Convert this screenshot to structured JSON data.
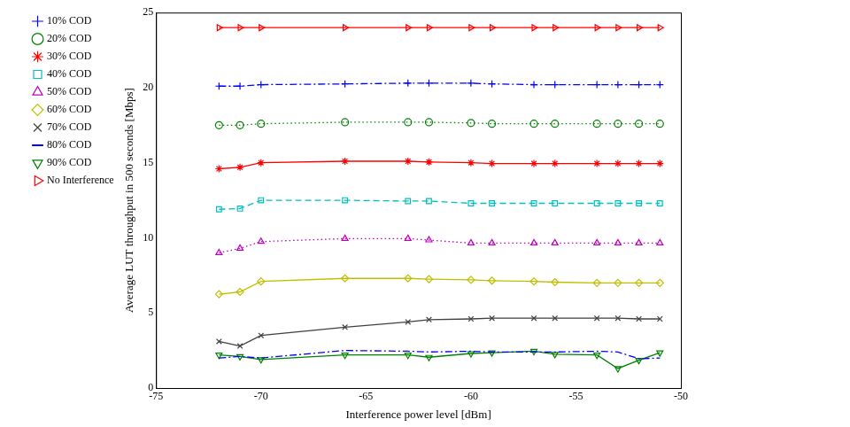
{
  "chart_data": {
    "type": "line",
    "x_label": "Interference power level [dBm]",
    "y_label": "Average LUT throughput in 500 seconds [Mbps]",
    "x": [
      -72,
      -71,
      -70,
      -66,
      -63,
      -62,
      -60,
      -59,
      -57,
      -56,
      -54,
      -53,
      -52,
      -51
    ],
    "xlim": [
      -75,
      -50
    ],
    "xticks": [
      -75,
      -70,
      -65,
      -60,
      -55,
      -50
    ],
    "ylim": [
      0,
      25
    ],
    "yticks": [
      0,
      5,
      10,
      15,
      20,
      25
    ],
    "grid": false,
    "legend": "left",
    "series": [
      {
        "name": "10% COD",
        "color": "#0000ff",
        "marker": "plus",
        "line_style": "dashdot",
        "values": [
          20.1,
          20.1,
          20.2,
          20.25,
          20.3,
          20.3,
          20.3,
          20.25,
          20.2,
          20.2,
          20.2,
          20.2,
          20.2,
          20.2
        ]
      },
      {
        "name": "20% COD",
        "color": "#008000",
        "marker": "circle",
        "line_style": "dotted",
        "values": [
          17.5,
          17.5,
          17.6,
          17.7,
          17.7,
          17.7,
          17.65,
          17.6,
          17.6,
          17.6,
          17.6,
          17.6,
          17.6,
          17.6
        ]
      },
      {
        "name": "30% COD",
        "color": "#ff0000",
        "marker": "star",
        "line_style": "solid",
        "values": [
          14.6,
          14.7,
          15.0,
          15.1,
          15.1,
          15.05,
          15.0,
          14.95,
          14.95,
          14.95,
          14.95,
          14.95,
          14.95,
          14.95
        ]
      },
      {
        "name": "40% COD",
        "color": "#00bfbf",
        "marker": "square",
        "line_style": "dashed",
        "values": [
          11.9,
          11.95,
          12.5,
          12.5,
          12.45,
          12.45,
          12.3,
          12.3,
          12.3,
          12.3,
          12.3,
          12.3,
          12.3,
          12.3
        ]
      },
      {
        "name": "50% COD",
        "color": "#bf00bf",
        "marker": "triangle_up",
        "line_style": "dotted",
        "values": [
          9.0,
          9.3,
          9.75,
          9.95,
          9.95,
          9.85,
          9.65,
          9.65,
          9.65,
          9.65,
          9.65,
          9.65,
          9.65,
          9.65
        ]
      },
      {
        "name": "60% COD",
        "color": "#bfbf00",
        "marker": "diamond",
        "line_style": "solid",
        "values": [
          6.25,
          6.4,
          7.1,
          7.3,
          7.3,
          7.25,
          7.2,
          7.15,
          7.1,
          7.05,
          7.0,
          7.0,
          7.0,
          7.0
        ]
      },
      {
        "name": "70% COD",
        "color": "#404040",
        "marker": "x",
        "line_style": "solid",
        "values": [
          3.1,
          2.8,
          3.5,
          4.05,
          4.4,
          4.55,
          4.6,
          4.65,
          4.65,
          4.65,
          4.65,
          4.65,
          4.6,
          4.6
        ]
      },
      {
        "name": "80% COD",
        "color": "#0000ff",
        "marker": "none",
        "line_style": "dashdot",
        "values": [
          2.0,
          2.1,
          2.0,
          2.5,
          2.45,
          2.4,
          2.45,
          2.4,
          2.4,
          2.4,
          2.45,
          2.4,
          1.95,
          2.0
        ]
      },
      {
        "name": "90% COD",
        "color": "#008000",
        "marker": "triangle_down",
        "line_style": "solid",
        "values": [
          2.2,
          2.1,
          1.9,
          2.2,
          2.2,
          2.05,
          2.3,
          2.35,
          2.45,
          2.25,
          2.2,
          1.3,
          1.85,
          2.35
        ]
      },
      {
        "name": "No Interference",
        "color": "#ff0000",
        "marker": "triangle_right",
        "line_style": "solid",
        "values": [
          24,
          24,
          24,
          24,
          24,
          24,
          24,
          24,
          24,
          24,
          24,
          24,
          24,
          24
        ]
      }
    ]
  }
}
